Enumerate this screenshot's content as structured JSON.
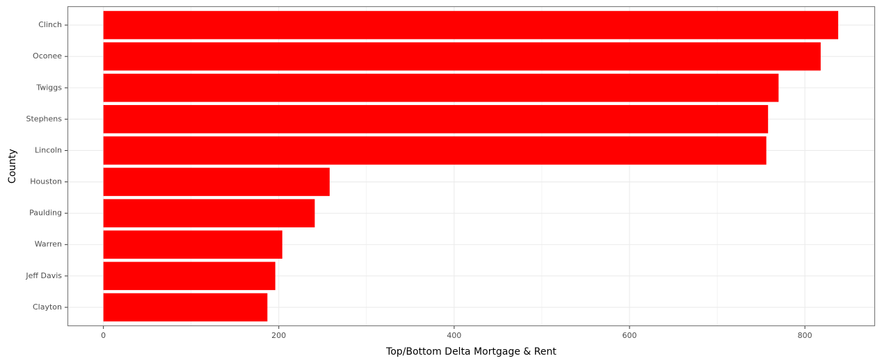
{
  "chart_data": {
    "type": "bar",
    "orientation": "horizontal",
    "categories": [
      "Clinch",
      "Oconee",
      "Twiggs",
      "Stephens",
      "Lincoln",
      "Houston",
      "Paulding",
      "Warren",
      "Jeff Davis",
      "Clayton"
    ],
    "values": [
      838,
      818,
      770,
      758,
      756,
      258,
      241,
      204,
      196,
      187
    ],
    "xlabel": "Top/Bottom Delta Mortgage & Rent",
    "ylabel": "County",
    "xlim": [
      -41,
      880
    ],
    "xticks": [
      0,
      200,
      400,
      600,
      800
    ],
    "tick_labels": [
      "0",
      "200",
      "400",
      "600",
      "800"
    ],
    "grid": true,
    "bar_color": "#ff0000",
    "grid_color": "#ebebeb",
    "panel_border_color": "#7f7f7f"
  }
}
